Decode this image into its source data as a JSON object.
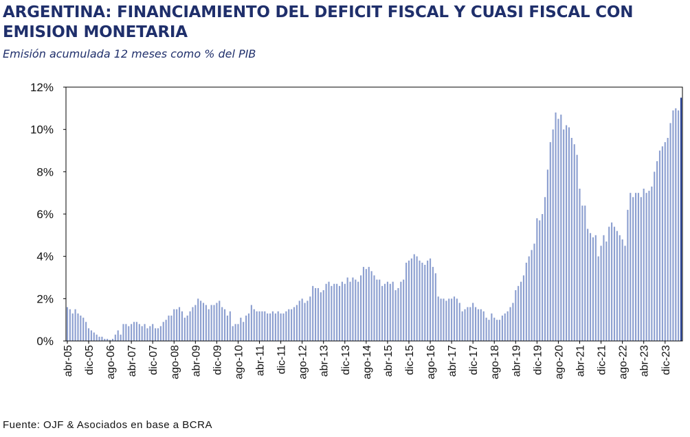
{
  "header": {
    "title": "ARGENTINA: FINANCIAMIENTO DEL DEFICIT FISCAL Y CUASI FISCAL CON EMISION MONETARIA",
    "subtitle": "Emisión acumulada 12 meses como % del PIB"
  },
  "footer": {
    "source": "Fuente:  OJF & Asociados en base a BCRA"
  },
  "chart_data": {
    "type": "bar",
    "title": "ARGENTINA: FINANCIAMIENTO DEL DEFICIT FISCAL Y CUASI FISCAL CON EMISION MONETARIA",
    "subtitle": "Emisión acumulada 12 meses como % del PIB",
    "xlabel": "",
    "ylabel": "",
    "ylim": [
      0,
      12
    ],
    "grid": false,
    "bar_color": "#8c9fd0",
    "last_bar_color": "#1f3a93",
    "y_ticks": [
      "0%",
      "2%",
      "4%",
      "6%",
      "8%",
      "10%",
      "12%"
    ],
    "x_tick_labels": [
      "abr-05",
      "dic-05",
      "ago-06",
      "abr-07",
      "dic-07",
      "ago-08",
      "abr-09",
      "dic-09",
      "ago-10",
      "abr-11",
      "dic-11",
      "ago-12",
      "abr-13",
      "dic-13",
      "ago-14",
      "abr-15",
      "dic-15",
      "ago-16",
      "abr-17",
      "dic-17",
      "ago-18",
      "abr-19",
      "dic-19",
      "ago-20",
      "abr-21",
      "dic-21",
      "ago-22",
      "abr-23",
      "dic-23"
    ],
    "start_month": "abr-05",
    "values": [
      1.6,
      1.5,
      1.3,
      1.5,
      1.3,
      1.2,
      1.1,
      0.9,
      0.6,
      0.5,
      0.4,
      0.3,
      0.2,
      0.2,
      0.1,
      0.1,
      0.05,
      0.1,
      0.3,
      0.5,
      0.3,
      0.8,
      0.8,
      0.7,
      0.8,
      0.9,
      0.9,
      0.8,
      0.7,
      0.8,
      0.6,
      0.7,
      0.8,
      0.6,
      0.6,
      0.7,
      0.9,
      1.0,
      1.2,
      1.2,
      1.5,
      1.5,
      1.6,
      1.4,
      1.1,
      1.2,
      1.4,
      1.6,
      1.7,
      2.0,
      1.9,
      1.8,
      1.7,
      1.5,
      1.7,
      1.7,
      1.8,
      1.9,
      1.6,
      1.5,
      1.2,
      1.4,
      0.7,
      0.8,
      0.8,
      1.1,
      0.9,
      1.2,
      1.3,
      1.7,
      1.5,
      1.4,
      1.4,
      1.4,
      1.4,
      1.3,
      1.3,
      1.4,
      1.3,
      1.4,
      1.3,
      1.3,
      1.4,
      1.5,
      1.5,
      1.6,
      1.7,
      1.9,
      2.0,
      1.8,
      1.9,
      2.1,
      2.6,
      2.5,
      2.5,
      2.3,
      2.4,
      2.7,
      2.8,
      2.6,
      2.7,
      2.7,
      2.6,
      2.8,
      2.7,
      3.0,
      2.8,
      3.0,
      2.9,
      2.8,
      3.1,
      3.5,
      3.4,
      3.5,
      3.3,
      3.1,
      2.9,
      2.9,
      2.6,
      2.7,
      2.8,
      2.7,
      2.8,
      2.4,
      2.5,
      2.8,
      2.9,
      3.7,
      3.8,
      3.9,
      4.1,
      4.0,
      3.8,
      3.7,
      3.6,
      3.8,
      3.9,
      3.5,
      3.2,
      2.1,
      2.0,
      2.0,
      1.9,
      2.0,
      2.0,
      2.1,
      2.0,
      1.8,
      1.4,
      1.5,
      1.6,
      1.6,
      1.8,
      1.6,
      1.5,
      1.5,
      1.4,
      1.1,
      1.0,
      1.3,
      1.1,
      1.0,
      1.0,
      1.2,
      1.3,
      1.4,
      1.6,
      1.8,
      2.4,
      2.6,
      2.8,
      3.1,
      3.7,
      4.0,
      4.3,
      4.6,
      5.8,
      5.7,
      6.0,
      6.8,
      8.1,
      9.4,
      10.0,
      10.8,
      10.5,
      10.7,
      10.0,
      10.2,
      10.1,
      9.6,
      9.3,
      8.8,
      7.2,
      6.4,
      6.4,
      5.3,
      5.1,
      4.9,
      5.0,
      4.0,
      4.5,
      5.0,
      4.7,
      5.4,
      5.6,
      5.4,
      5.2,
      5.0,
      4.8,
      4.5,
      6.2,
      7.0,
      6.8,
      7.0,
      7.0,
      6.8,
      7.2,
      7.0,
      7.1,
      7.3,
      8.0,
      8.5,
      9.0,
      9.2,
      9.4,
      9.6,
      10.3,
      10.9,
      11.0,
      10.9,
      11.5
    ]
  }
}
